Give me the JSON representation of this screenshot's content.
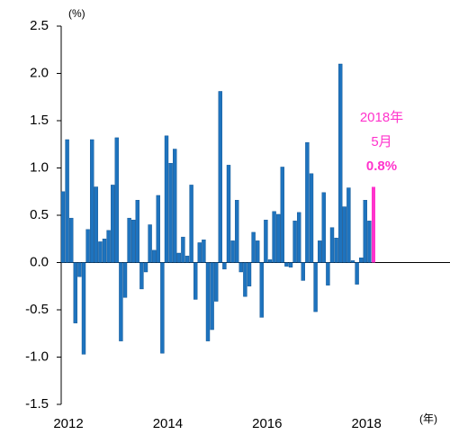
{
  "chart_data": {
    "type": "bar",
    "y_unit_label": "(%)",
    "x_unit_label": "(年)",
    "annotation": [
      "2018年",
      "5月",
      "0.8%"
    ],
    "annotation_color": "#ff33cc",
    "categories": [
      "2012",
      null,
      null,
      null,
      null,
      null,
      null,
      null,
      null,
      null,
      null,
      null,
      null,
      null,
      null,
      null,
      null,
      null,
      null,
      null,
      null,
      null,
      null,
      null,
      "2014",
      null,
      null,
      null,
      null,
      null,
      null,
      null,
      null,
      null,
      null,
      null,
      null,
      null,
      null,
      null,
      null,
      null,
      null,
      null,
      null,
      null,
      null,
      null,
      "2016",
      null,
      null,
      null,
      null,
      null,
      null,
      null,
      null,
      null,
      null,
      null,
      null,
      null,
      null,
      null,
      null,
      null,
      null,
      null,
      null,
      null,
      null,
      null,
      "2018",
      null,
      null,
      null
    ],
    "values": [
      0.75,
      1.3,
      0.47,
      -0.64,
      -0.15,
      -0.97,
      0.35,
      1.3,
      0.8,
      0.22,
      0.25,
      0.34,
      0.82,
      1.32,
      -0.83,
      -0.37,
      0.47,
      0.45,
      0.66,
      -0.28,
      -0.1,
      0.4,
      0.13,
      0.71,
      -0.96,
      1.34,
      1.05,
      1.2,
      0.1,
      0.27,
      0.07,
      0.82,
      -0.39,
      0.21,
      0.24,
      -0.83,
      -0.71,
      -0.41,
      1.81,
      -0.07,
      1.03,
      0.23,
      0.66,
      -0.1,
      -0.36,
      -0.25,
      0.32,
      0.23,
      -0.58,
      0.45,
      0.03,
      0.54,
      0.51,
      1.01,
      -0.04,
      -0.05,
      0.44,
      0.53,
      -0.19,
      1.27,
      0.94,
      -0.52,
      0.23,
      0.74,
      -0.24,
      0.37,
      0.26,
      2.1,
      0.59,
      0.79,
      0.02,
      -0.23,
      0.05,
      0.66,
      0.44,
      0.8
    ],
    "colors": [
      "#1e73be",
      "#1e73be",
      "#1e73be",
      "#1e73be",
      "#1e73be",
      "#1e73be",
      "#1e73be",
      "#1e73be",
      "#1e73be",
      "#1e73be",
      "#1e73be",
      "#1e73be",
      "#1e73be",
      "#1e73be",
      "#1e73be",
      "#1e73be",
      "#1e73be",
      "#1e73be",
      "#1e73be",
      "#1e73be",
      "#1e73be",
      "#1e73be",
      "#1e73be",
      "#1e73be",
      "#1e73be",
      "#1e73be",
      "#1e73be",
      "#1e73be",
      "#1e73be",
      "#1e73be",
      "#1e73be",
      "#1e73be",
      "#1e73be",
      "#1e73be",
      "#1e73be",
      "#1e73be",
      "#1e73be",
      "#1e73be",
      "#1e73be",
      "#1e73be",
      "#1e73be",
      "#1e73be",
      "#1e73be",
      "#1e73be",
      "#1e73be",
      "#1e73be",
      "#1e73be",
      "#1e73be",
      "#1e73be",
      "#1e73be",
      "#1e73be",
      "#1e73be",
      "#1e73be",
      "#1e73be",
      "#1e73be",
      "#1e73be",
      "#1e73be",
      "#1e73be",
      "#1e73be",
      "#1e73be",
      "#1e73be",
      "#1e73be",
      "#1e73be",
      "#1e73be",
      "#1e73be",
      "#1e73be",
      "#1e73be",
      "#1e73be",
      "#1e73be",
      "#1e73be",
      "#1e73be",
      "#1e73be",
      "#1e73be",
      "#1e73be",
      "#1e73be",
      "#ff33cc"
    ],
    "ylim": [
      -1.5,
      2.5
    ],
    "yticks": [
      -1.5,
      -0.5,
      {
        "value": -1,
        "label": "-1.0"
      },
      {
        "value": 0,
        "label": "0.0"
      },
      0.5,
      {
        "value": 1,
        "label": "1.0"
      },
      1.5,
      {
        "value": 2,
        "label": "2.0"
      },
      2.5
    ]
  }
}
